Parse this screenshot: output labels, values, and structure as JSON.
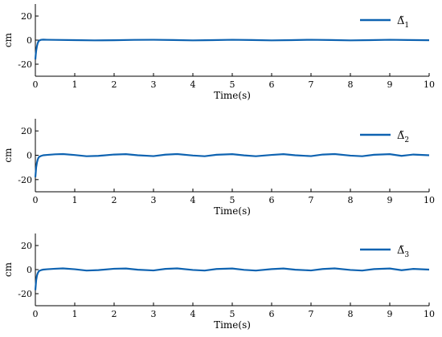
{
  "chart_data": [
    {
      "type": "line",
      "title": "",
      "xlabel": "Time(s)",
      "ylabel": "cm",
      "xlim": [
        0,
        10
      ],
      "ylim": [
        -30,
        30
      ],
      "xticks": [
        "0",
        "1",
        "2",
        "3",
        "4",
        "5",
        "6",
        "7",
        "8",
        "9",
        "10"
      ],
      "yticks": [
        "20",
        "0",
        "-20"
      ],
      "legend_position": "top-right",
      "grid": false,
      "series": [
        {
          "name": "Δ̃1",
          "legend_base": "Δ̃",
          "legend_sub": "1",
          "color": "#0e63b1",
          "x": [
            0,
            0.01,
            0.02,
            0.04,
            0.06,
            0.08,
            0.1,
            0.15,
            0.2,
            0.3,
            0.5,
            1,
            1.5,
            2,
            2.5,
            3,
            3.5,
            4,
            4.5,
            5,
            5.5,
            6,
            6.5,
            7,
            7.5,
            8,
            8.5,
            9,
            9.5,
            10
          ],
          "y": [
            -16,
            -12,
            -9,
            -5,
            -2.5,
            -1,
            -0.3,
            0.3,
            0.4,
            0.3,
            0.2,
            0.0,
            -0.2,
            -0.1,
            0.2,
            0.3,
            0.1,
            -0.2,
            0.0,
            0.3,
            0.1,
            -0.2,
            0.0,
            0.3,
            0.1,
            -0.2,
            0.0,
            0.3,
            0.1,
            -0.1
          ]
        }
      ]
    },
    {
      "type": "line",
      "title": "",
      "xlabel": "Time(s)",
      "ylabel": "cm",
      "xlim": [
        0,
        10
      ],
      "ylim": [
        -30,
        30
      ],
      "xticks": [
        "0",
        "1",
        "2",
        "3",
        "4",
        "5",
        "6",
        "7",
        "8",
        "9",
        "10"
      ],
      "yticks": [
        "20",
        "0",
        "-20"
      ],
      "legend_position": "top-right",
      "grid": false,
      "series": [
        {
          "name": "Δ̃2",
          "legend_base": "Δ̃",
          "legend_sub": "2",
          "color": "#0e63b1",
          "x": [
            0,
            0.01,
            0.02,
            0.04,
            0.06,
            0.08,
            0.1,
            0.15,
            0.2,
            0.3,
            0.5,
            0.7,
            1.0,
            1.3,
            1.6,
            2.0,
            2.3,
            2.6,
            3.0,
            3.3,
            3.6,
            4.0,
            4.3,
            4.6,
            5.0,
            5.3,
            5.6,
            6.0,
            6.3,
            6.6,
            7.0,
            7.3,
            7.6,
            8.0,
            8.3,
            8.6,
            9.0,
            9.3,
            9.6,
            10.0
          ],
          "y": [
            -18,
            -14,
            -10,
            -6,
            -3.5,
            -2,
            -1.2,
            -0.5,
            0.0,
            0.3,
            0.8,
            1.0,
            0.2,
            -0.8,
            -0.5,
            0.6,
            0.9,
            0.0,
            -0.7,
            0.5,
            1.0,
            -0.2,
            -0.8,
            0.4,
            0.9,
            -0.1,
            -0.8,
            0.3,
            0.9,
            0.0,
            -0.7,
            0.6,
            1.0,
            -0.3,
            -0.8,
            0.4,
            0.9,
            -0.5,
            0.6,
            0.0
          ]
        }
      ]
    },
    {
      "type": "line",
      "title": "",
      "xlabel": "Time(s)",
      "ylabel": "cm",
      "xlim": [
        0,
        10
      ],
      "ylim": [
        -30,
        30
      ],
      "xticks": [
        "0",
        "1",
        "2",
        "3",
        "4",
        "5",
        "6",
        "7",
        "8",
        "9",
        "10"
      ],
      "yticks": [
        "20",
        "0",
        "-20"
      ],
      "legend_position": "top-right",
      "grid": false,
      "series": [
        {
          "name": "Δ̃3",
          "legend_base": "Δ̃",
          "legend_sub": "3",
          "color": "#0e63b1",
          "x": [
            0,
            0.01,
            0.02,
            0.04,
            0.06,
            0.08,
            0.1,
            0.15,
            0.2,
            0.3,
            0.5,
            0.7,
            1.0,
            1.3,
            1.6,
            2.0,
            2.3,
            2.6,
            3.0,
            3.3,
            3.6,
            4.0,
            4.3,
            4.6,
            5.0,
            5.3,
            5.6,
            6.0,
            6.3,
            6.6,
            7.0,
            7.3,
            7.6,
            8.0,
            8.3,
            8.6,
            9.0,
            9.3,
            9.6,
            10.0
          ],
          "y": [
            -17,
            -13,
            -9,
            -5,
            -3,
            -1.8,
            -1.0,
            -0.4,
            0.0,
            0.3,
            0.7,
            1.0,
            0.3,
            -0.8,
            -0.4,
            0.7,
            0.9,
            -0.1,
            -0.7,
            0.6,
            1.0,
            -0.3,
            -0.8,
            0.5,
            0.9,
            -0.2,
            -0.8,
            0.4,
            0.9,
            -0.1,
            -0.7,
            0.5,
            1.0,
            -0.3,
            -0.8,
            0.4,
            0.9,
            -0.5,
            0.6,
            0.0
          ]
        }
      ]
    }
  ]
}
